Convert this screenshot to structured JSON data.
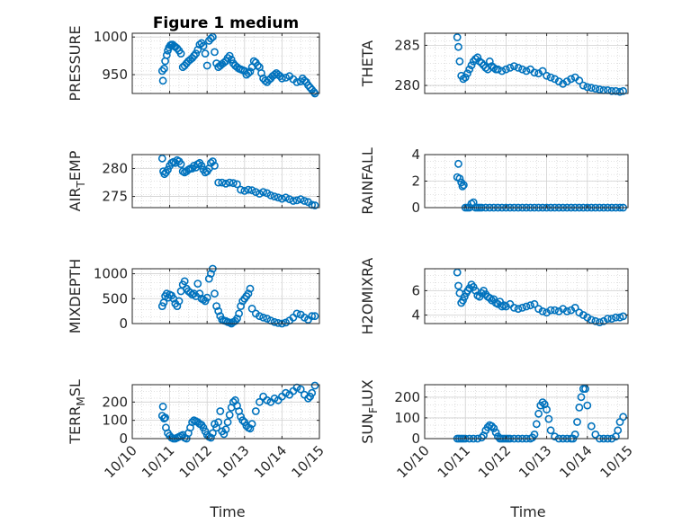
{
  "figure": {
    "title": "Figure 1 medium",
    "marker_color": "#0072BD",
    "x_type": "date",
    "x_ticks": [
      "10/10",
      "10/11",
      "10/12",
      "10/13",
      "10/14",
      "10/15"
    ],
    "x_label": "Time"
  },
  "chart_data": [
    {
      "type": "scatter",
      "ylabel": "PRESSURE",
      "ylabel_main": "PRESSURE",
      "ylabel_sub": "",
      "ylabel_tail": "",
      "xlim": [
        0,
        5
      ],
      "ylim": [
        925,
        1005
      ],
      "yticks": [
        950,
        1000
      ],
      "grid": true,
      "show_xticks": false,
      "x": [
        0.8,
        0.82,
        0.85,
        0.88,
        0.92,
        0.95,
        0.98,
        1.02,
        1.05,
        1.08,
        1.12,
        1.15,
        1.2,
        1.25,
        1.3,
        1.35,
        1.4,
        1.45,
        1.5,
        1.55,
        1.6,
        1.65,
        1.7,
        1.75,
        1.8,
        1.85,
        1.9,
        1.95,
        2.0,
        2.05,
        2.1,
        2.15,
        2.2,
        2.25,
        2.3,
        2.35,
        2.4,
        2.45,
        2.5,
        2.55,
        2.6,
        2.65,
        2.7,
        2.75,
        2.8,
        2.85,
        2.9,
        2.95,
        3.0,
        3.05,
        3.1,
        3.15,
        3.2,
        3.25,
        3.3,
        3.35,
        3.4,
        3.45,
        3.5,
        3.55,
        3.6,
        3.65,
        3.7,
        3.75,
        3.8,
        3.85,
        3.9,
        3.95,
        4.0,
        4.1,
        4.2,
        4.3,
        4.4,
        4.5,
        4.55,
        4.6,
        4.65,
        4.7,
        4.75,
        4.8,
        4.85,
        4.88
      ],
      "y": [
        955,
        942,
        958,
        968,
        976,
        982,
        986,
        989,
        990,
        990,
        988,
        987,
        985,
        982,
        978,
        960,
        962,
        965,
        968,
        970,
        972,
        975,
        978,
        983,
        990,
        992,
        988,
        978,
        962,
        995,
        998,
        1000,
        980,
        965,
        960,
        962,
        964,
        966,
        968,
        972,
        975,
        970,
        965,
        962,
        960,
        958,
        957,
        956,
        955,
        950,
        952,
        954,
        960,
        968,
        966,
        962,
        960,
        952,
        945,
        942,
        940,
        943,
        945,
        948,
        950,
        952,
        950,
        948,
        945,
        946,
        948,
        944,
        940,
        941,
        945,
        942,
        940,
        936,
        933,
        930,
        927,
        925
      ]
    },
    {
      "type": "scatter",
      "ylabel": "THETA",
      "ylabel_main": "THETA",
      "ylabel_sub": "",
      "ylabel_tail": "",
      "xlim": [
        0,
        5
      ],
      "ylim": [
        279,
        286.5
      ],
      "yticks": [
        280,
        285
      ],
      "grid": true,
      "show_xticks": false,
      "x": [
        0.8,
        0.83,
        0.86,
        0.9,
        0.95,
        1.0,
        1.05,
        1.1,
        1.15,
        1.2,
        1.25,
        1.3,
        1.35,
        1.4,
        1.45,
        1.5,
        1.55,
        1.6,
        1.65,
        1.7,
        1.75,
        1.8,
        1.9,
        2.0,
        2.1,
        2.2,
        2.3,
        2.4,
        2.5,
        2.6,
        2.7,
        2.8,
        2.9,
        3.0,
        3.1,
        3.2,
        3.3,
        3.4,
        3.5,
        3.6,
        3.7,
        3.8,
        3.9,
        4.0,
        4.1,
        4.2,
        4.3,
        4.4,
        4.5,
        4.6,
        4.7,
        4.8,
        4.88
      ],
      "y": [
        286,
        284.8,
        283,
        281.2,
        280.8,
        281,
        281.5,
        282,
        282.5,
        283,
        283.3,
        283.5,
        283,
        282.8,
        282.5,
        282.2,
        282,
        283,
        282.4,
        282.2,
        282,
        282,
        281.8,
        282,
        282.2,
        282.4,
        282.2,
        282,
        281.8,
        282,
        281.6,
        281.5,
        281.8,
        281.2,
        281,
        280.8,
        280.5,
        280.2,
        280.5,
        280.8,
        281,
        280.6,
        280,
        279.8,
        279.7,
        279.6,
        279.5,
        279.4,
        279.4,
        279.3,
        279.3,
        279.2,
        279.3
      ]
    },
    {
      "type": "scatter",
      "ylabel": "AIR_TEMP",
      "ylabel_main": "AIR",
      "ylabel_sub": "T",
      "ylabel_tail": "EMP",
      "xlim": [
        0,
        5
      ],
      "ylim": [
        273,
        282.5
      ],
      "yticks": [
        275,
        280
      ],
      "grid": true,
      "show_xticks": false,
      "x": [
        0.8,
        0.83,
        0.86,
        0.9,
        0.95,
        1.0,
        1.05,
        1.1,
        1.15,
        1.2,
        1.25,
        1.3,
        1.35,
        1.4,
        1.45,
        1.5,
        1.55,
        1.6,
        1.65,
        1.7,
        1.75,
        1.8,
        1.85,
        1.9,
        1.95,
        2.0,
        2.05,
        2.1,
        2.15,
        2.2,
        2.3,
        2.4,
        2.5,
        2.6,
        2.7,
        2.8,
        2.9,
        3.0,
        3.1,
        3.2,
        3.3,
        3.4,
        3.5,
        3.6,
        3.7,
        3.8,
        3.9,
        4.0,
        4.1,
        4.2,
        4.3,
        4.4,
        4.5,
        4.6,
        4.7,
        4.8,
        4.88
      ],
      "y": [
        281.8,
        279.5,
        279,
        279.3,
        279.8,
        280.5,
        281,
        281.2,
        281,
        281.5,
        281.3,
        280.8,
        279.5,
        279.3,
        279.5,
        279.8,
        280,
        280,
        280.5,
        280.2,
        280.8,
        281,
        280.5,
        279.8,
        279.3,
        279.5,
        280,
        281,
        281.3,
        280.5,
        277.5,
        277.5,
        277.3,
        277.5,
        277.4,
        277.2,
        276.2,
        276,
        276.2,
        276.1,
        275.8,
        275.5,
        275.8,
        275.6,
        275.2,
        275,
        274.8,
        274.6,
        274.8,
        274.5,
        274.2,
        274.3,
        274.5,
        274.2,
        274,
        273.5,
        273.4
      ]
    },
    {
      "type": "scatter",
      "ylabel": "RAINFALL",
      "ylabel_main": "RAINFALL",
      "ylabel_sub": "",
      "ylabel_tail": "",
      "xlim": [
        0,
        5
      ],
      "ylim": [
        0,
        4
      ],
      "yticks": [
        0,
        2,
        4
      ],
      "grid": true,
      "show_xticks": false,
      "x": [
        0.8,
        0.83,
        0.86,
        0.9,
        0.93,
        0.96,
        1.0,
        1.05,
        1.1,
        1.15,
        1.2,
        1.25,
        1.3,
        1.35,
        1.4,
        1.5,
        1.6,
        1.7,
        1.8,
        1.9,
        2.0,
        2.1,
        2.2,
        2.3,
        2.4,
        2.5,
        2.6,
        2.7,
        2.8,
        2.9,
        3.0,
        3.1,
        3.2,
        3.3,
        3.4,
        3.5,
        3.6,
        3.7,
        3.8,
        3.9,
        4.0,
        4.1,
        4.2,
        4.3,
        4.4,
        4.5,
        4.6,
        4.7,
        4.8,
        4.88
      ],
      "y": [
        2.3,
        3.3,
        2.2,
        1.9,
        1.6,
        1.7,
        0,
        0,
        0,
        0.3,
        0.4,
        0,
        0,
        0,
        0,
        0,
        0,
        0,
        0,
        0,
        0,
        0,
        0,
        0,
        0,
        0,
        0,
        0,
        0,
        0,
        0,
        0,
        0,
        0,
        0,
        0,
        0,
        0,
        0,
        0,
        0,
        0,
        0,
        0,
        0,
        0,
        0,
        0,
        0,
        0
      ]
    },
    {
      "type": "scatter",
      "ylabel": "MIXDEPTH",
      "ylabel_main": "MIXDEPTH",
      "ylabel_sub": "",
      "ylabel_tail": "",
      "xlim": [
        0,
        5
      ],
      "ylim": [
        0,
        1100
      ],
      "yticks": [
        0,
        500,
        1000
      ],
      "grid": true,
      "show_xticks": false,
      "x": [
        0.8,
        0.84,
        0.88,
        0.92,
        0.96,
        1.0,
        1.05,
        1.1,
        1.15,
        1.2,
        1.25,
        1.3,
        1.35,
        1.4,
        1.45,
        1.5,
        1.55,
        1.6,
        1.65,
        1.7,
        1.75,
        1.8,
        1.85,
        1.9,
        1.95,
        2.0,
        2.05,
        2.1,
        2.15,
        2.2,
        2.25,
        2.3,
        2.35,
        2.4,
        2.45,
        2.5,
        2.55,
        2.6,
        2.65,
        2.7,
        2.75,
        2.8,
        2.85,
        2.9,
        2.95,
        3.0,
        3.05,
        3.1,
        3.15,
        3.2,
        3.3,
        3.4,
        3.5,
        3.6,
        3.7,
        3.8,
        3.9,
        4.0,
        4.1,
        4.2,
        4.3,
        4.4,
        4.5,
        4.6,
        4.7,
        4.8,
        4.88
      ],
      "y": [
        350,
        420,
        550,
        600,
        520,
        580,
        560,
        500,
        400,
        350,
        450,
        650,
        780,
        850,
        700,
        650,
        620,
        580,
        600,
        550,
        800,
        600,
        500,
        480,
        450,
        520,
        900,
        1000,
        1100,
        600,
        350,
        250,
        150,
        80,
        60,
        50,
        30,
        20,
        0,
        30,
        50,
        100,
        200,
        350,
        450,
        500,
        550,
        600,
        700,
        300,
        200,
        150,
        120,
        100,
        60,
        30,
        10,
        0,
        20,
        60,
        120,
        200,
        180,
        120,
        80,
        150,
        150
      ]
    },
    {
      "type": "scatter",
      "ylabel": "H2OMIXRA",
      "ylabel_main": "H2OMIXRA",
      "ylabel_sub": "",
      "ylabel_tail": "",
      "xlim": [
        0,
        5
      ],
      "ylim": [
        3.3,
        7.8
      ],
      "yticks": [
        4,
        6
      ],
      "grid": true,
      "show_xticks": false,
      "x": [
        0.8,
        0.83,
        0.86,
        0.9,
        0.94,
        0.98,
        1.02,
        1.06,
        1.1,
        1.15,
        1.2,
        1.25,
        1.3,
        1.35,
        1.4,
        1.45,
        1.5,
        1.55,
        1.6,
        1.65,
        1.7,
        1.75,
        1.8,
        1.85,
        1.9,
        1.95,
        2.0,
        2.1,
        2.2,
        2.3,
        2.4,
        2.5,
        2.6,
        2.7,
        2.8,
        2.9,
        3.0,
        3.1,
        3.2,
        3.3,
        3.4,
        3.5,
        3.6,
        3.7,
        3.8,
        3.9,
        4.0,
        4.1,
        4.2,
        4.3,
        4.4,
        4.5,
        4.6,
        4.7,
        4.8,
        4.88
      ],
      "y": [
        7.5,
        6.4,
        5.8,
        5,
        5.2,
        5.5,
        5.8,
        6,
        6.2,
        6.5,
        6.3,
        6,
        5.6,
        5.5,
        5.8,
        6,
        5.7,
        5.5,
        5.4,
        5.2,
        5.3,
        5,
        4.9,
        5.1,
        4.7,
        4.8,
        4.7,
        4.9,
        4.6,
        4.5,
        4.6,
        4.7,
        4.8,
        4.9,
        4.5,
        4.3,
        4.2,
        4.4,
        4.4,
        4.3,
        4.5,
        4.3,
        4.4,
        4.6,
        4.2,
        4,
        3.8,
        3.6,
        3.5,
        3.4,
        3.5,
        3.7,
        3.7,
        3.8,
        3.8,
        3.9
      ]
    },
    {
      "type": "scatter",
      "ylabel": "TERR_MSL",
      "ylabel_main": "TERR",
      "ylabel_sub": "M",
      "ylabel_tail": "SL",
      "xlim": [
        0,
        5
      ],
      "ylim": [
        0,
        295
      ],
      "yticks": [
        0,
        100,
        200
      ],
      "grid": true,
      "show_xticks": true,
      "x": [
        0.8,
        0.82,
        0.85,
        0.88,
        0.9,
        0.95,
        1.0,
        1.05,
        1.1,
        1.15,
        1.2,
        1.25,
        1.3,
        1.35,
        1.4,
        1.45,
        1.5,
        1.55,
        1.6,
        1.65,
        1.7,
        1.75,
        1.8,
        1.85,
        1.9,
        1.95,
        2.0,
        2.05,
        2.1,
        2.15,
        2.2,
        2.25,
        2.3,
        2.35,
        2.4,
        2.45,
        2.5,
        2.55,
        2.6,
        2.65,
        2.7,
        2.75,
        2.8,
        2.85,
        2.9,
        2.95,
        3.0,
        3.05,
        3.1,
        3.15,
        3.2,
        3.3,
        3.4,
        3.5,
        3.6,
        3.7,
        3.8,
        3.9,
        4.0,
        4.1,
        4.2,
        4.3,
        4.4,
        4.5,
        4.6,
        4.7,
        4.75,
        4.8,
        4.88
      ],
      "y": [
        125,
        175,
        110,
        115,
        60,
        30,
        15,
        5,
        0,
        0,
        5,
        10,
        15,
        20,
        5,
        0,
        30,
        60,
        90,
        100,
        95,
        90,
        80,
        75,
        60,
        40,
        20,
        10,
        5,
        30,
        80,
        60,
        90,
        150,
        40,
        25,
        50,
        90,
        130,
        170,
        200,
        210,
        180,
        150,
        120,
        100,
        90,
        70,
        60,
        55,
        80,
        150,
        200,
        230,
        210,
        200,
        220,
        210,
        230,
        250,
        240,
        260,
        280,
        270,
        240,
        220,
        230,
        250,
        290
      ]
    },
    {
      "type": "scatter",
      "ylabel": "SUN_FLUX",
      "ylabel_main": "SUN",
      "ylabel_sub": "F",
      "ylabel_tail": "LUX",
      "xlim": [
        0,
        5
      ],
      "ylim": [
        0,
        260
      ],
      "yticks": [
        0,
        100,
        200
      ],
      "grid": true,
      "show_xticks": true,
      "x": [
        0.8,
        0.85,
        0.9,
        0.95,
        1.0,
        1.1,
        1.2,
        1.3,
        1.4,
        1.45,
        1.5,
        1.55,
        1.6,
        1.65,
        1.7,
        1.75,
        1.8,
        1.85,
        1.9,
        1.95,
        2.0,
        2.05,
        2.1,
        2.2,
        2.3,
        2.4,
        2.5,
        2.6,
        2.65,
        2.7,
        2.75,
        2.8,
        2.85,
        2.9,
        2.95,
        3.0,
        3.05,
        3.1,
        3.2,
        3.3,
        3.4,
        3.5,
        3.6,
        3.65,
        3.7,
        3.75,
        3.8,
        3.85,
        3.9,
        3.95,
        4.0,
        4.1,
        4.2,
        4.3,
        4.4,
        4.5,
        4.6,
        4.7,
        4.75,
        4.8,
        4.88
      ],
      "y": [
        0,
        0,
        0,
        0,
        0,
        0,
        0,
        0,
        5,
        15,
        40,
        55,
        65,
        60,
        50,
        30,
        10,
        0,
        0,
        0,
        0,
        0,
        0,
        0,
        0,
        0,
        0,
        0,
        5,
        20,
        70,
        120,
        160,
        175,
        165,
        140,
        95,
        40,
        10,
        0,
        0,
        0,
        0,
        0,
        20,
        80,
        150,
        200,
        240,
        240,
        160,
        60,
        20,
        0,
        0,
        0,
        0,
        10,
        40,
        80,
        105
      ]
    }
  ]
}
